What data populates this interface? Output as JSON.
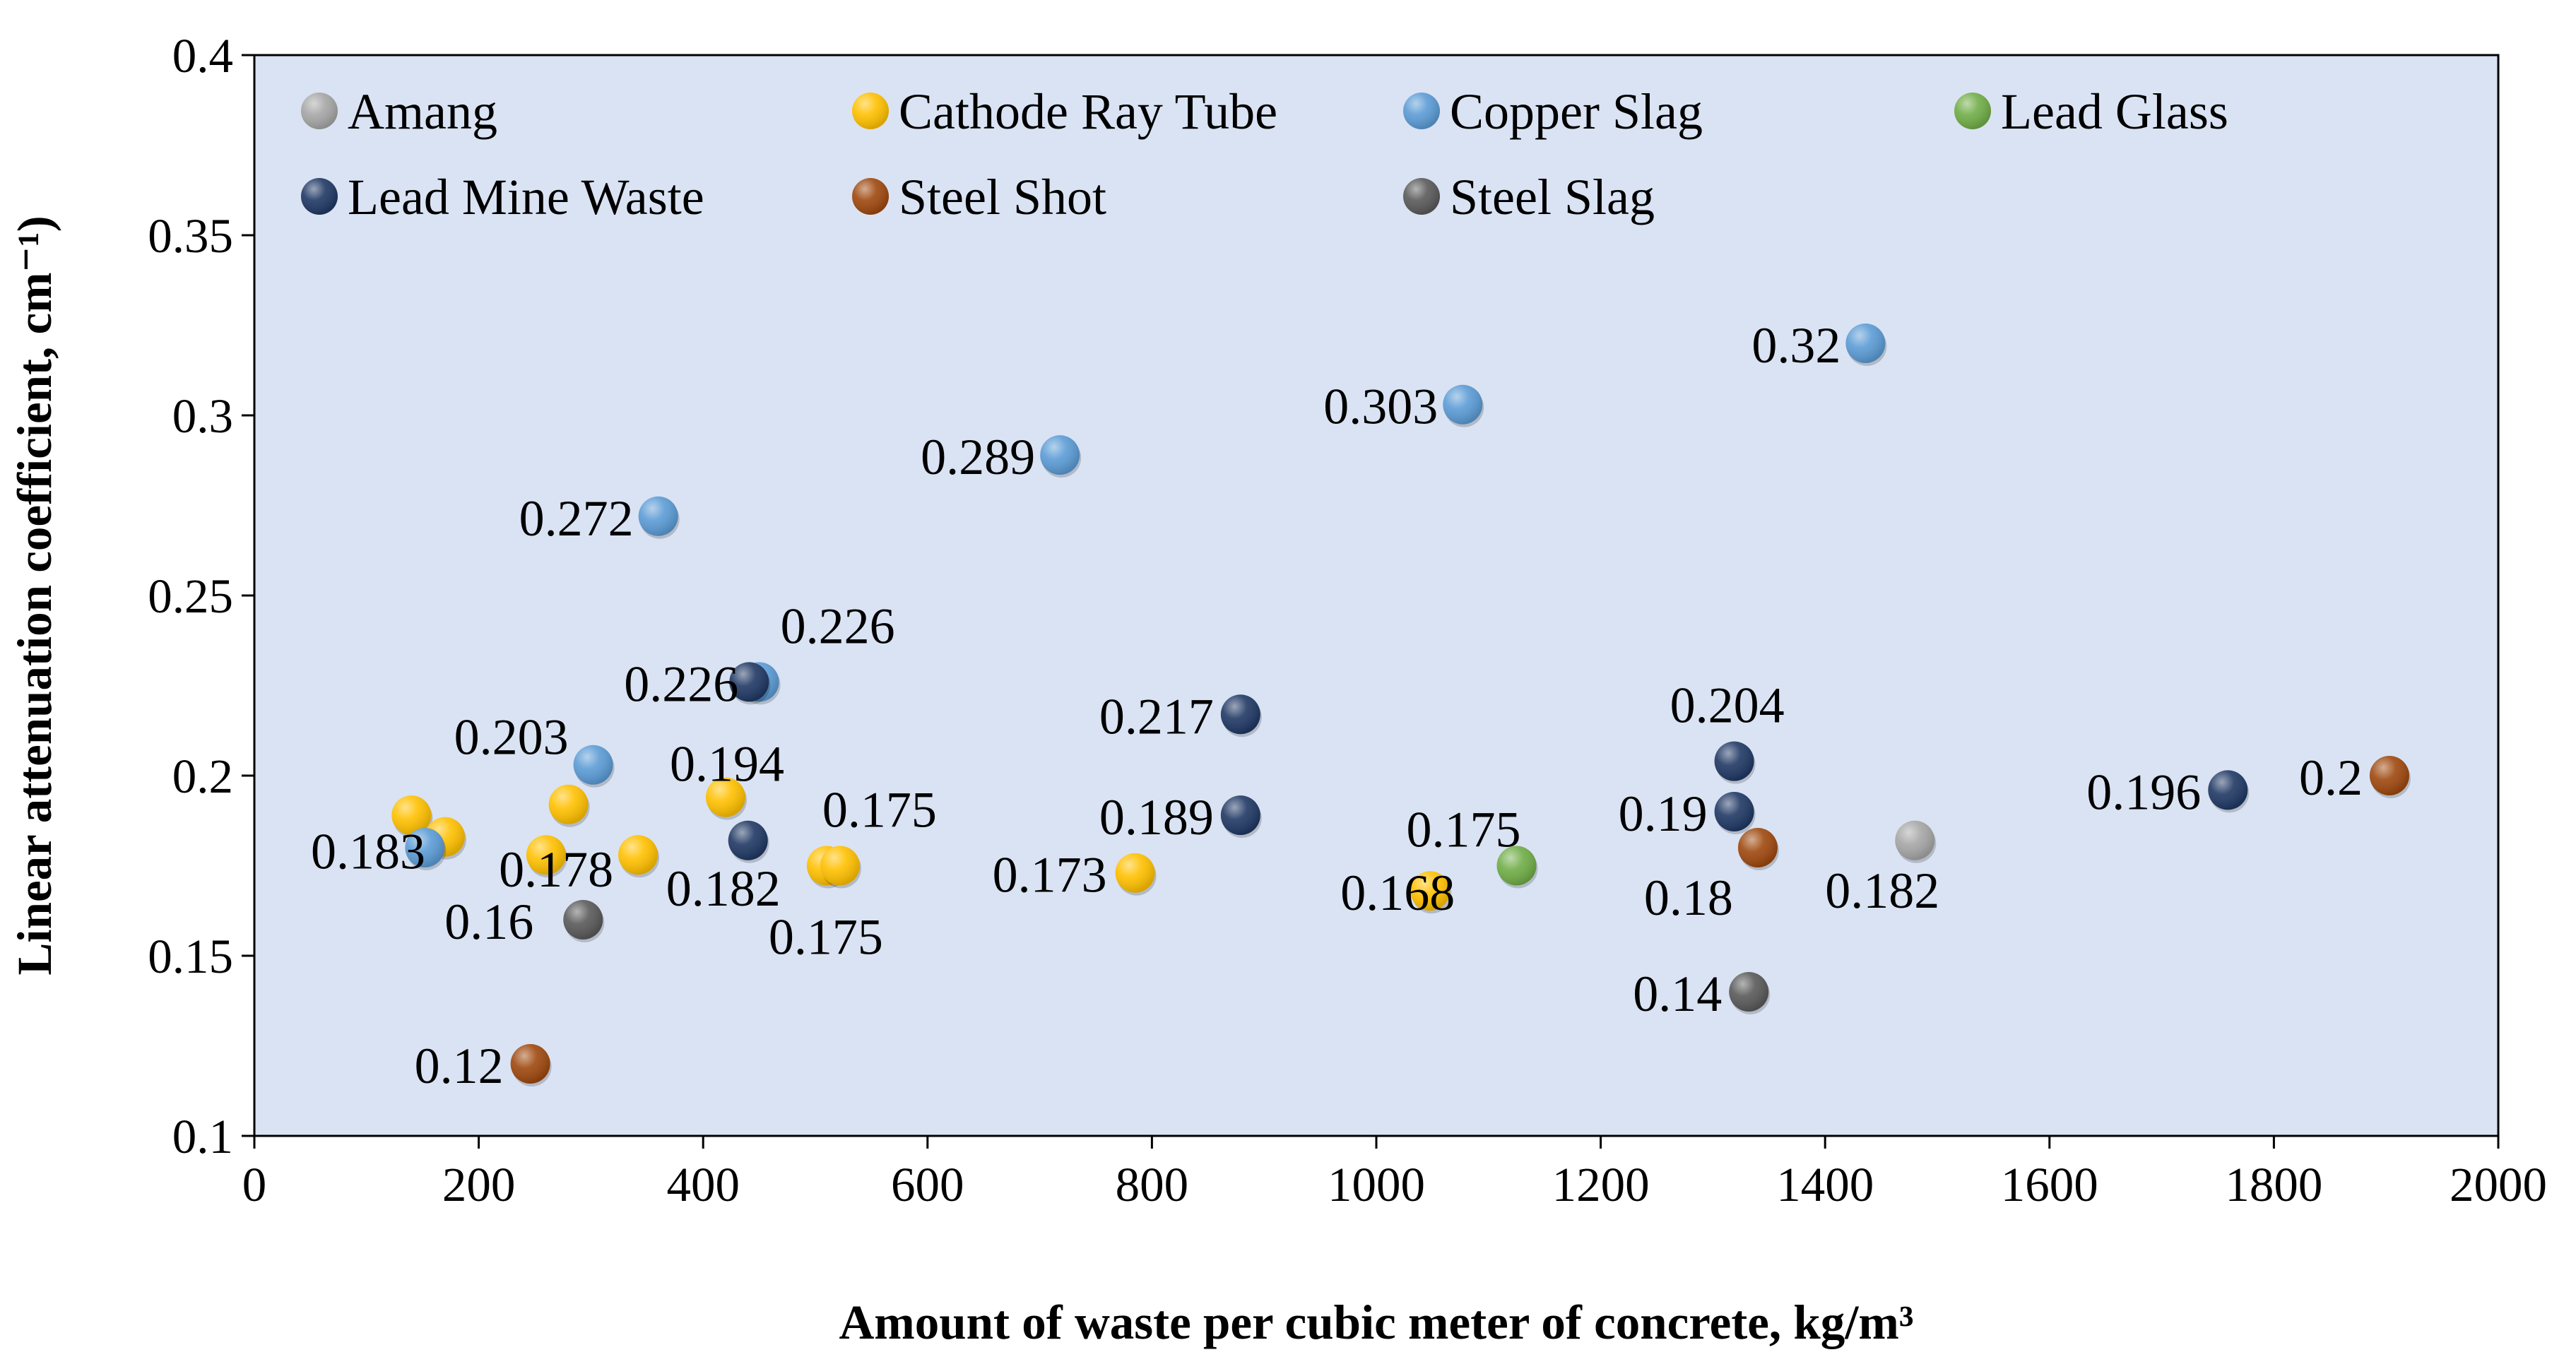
{
  "chart_data": {
    "type": "scatter",
    "xlabel": "Amount of waste per cubic meter of concrete, kg/m³",
    "ylabel": "Linear attenuation coefficient, cm⁻¹)",
    "xlim": [
      0,
      2000
    ],
    "ylim": [
      0.1,
      0.4
    ],
    "x_ticks": [
      "0",
      "200",
      "400",
      "600",
      "800",
      "1000",
      "1200",
      "1400",
      "1600",
      "1800",
      "2000"
    ],
    "y_ticks": [
      "0.1",
      "0.15",
      "0.2",
      "0.25",
      "0.3",
      "0.35",
      "0.4"
    ],
    "grid": false,
    "legend_position": "top",
    "plot_background": "#DAE3F3",
    "series": [
      {
        "name": "Amang",
        "color": "#A6A6A6",
        "points": [
          {
            "x": 1480,
            "y": 0.182,
            "label": "0.182"
          }
        ]
      },
      {
        "name": "Cathode Ray Tube",
        "color": "#FFC000",
        "points": [
          {
            "x": 140,
            "y": 0.189,
            "label": ""
          },
          {
            "x": 170,
            "y": 0.183,
            "label": "0.183"
          },
          {
            "x": 260,
            "y": 0.178,
            "label": ""
          },
          {
            "x": 280,
            "y": 0.192,
            "label": ""
          },
          {
            "x": 342,
            "y": 0.178,
            "label": "0.178"
          },
          {
            "x": 420,
            "y": 0.194,
            "label": "0.194"
          },
          {
            "x": 510,
            "y": 0.175,
            "label": "0.175"
          },
          {
            "x": 522,
            "y": 0.175,
            "label": "0.175"
          },
          {
            "x": 785,
            "y": 0.173,
            "label": "0.173"
          },
          {
            "x": 1048,
            "y": 0.168,
            "label": "0.168"
          }
        ]
      },
      {
        "name": "Copper Slag",
        "color": "#5B9BD5",
        "points": [
          {
            "x": 152,
            "y": 0.18,
            "label": ""
          },
          {
            "x": 302,
            "y": 0.203,
            "label": "0.203"
          },
          {
            "x": 360,
            "y": 0.272,
            "label": "0.272"
          },
          {
            "x": 450,
            "y": 0.226,
            "label": "0.226"
          },
          {
            "x": 718,
            "y": 0.289,
            "label": "0.289"
          },
          {
            "x": 1077,
            "y": 0.303,
            "label": "0.303"
          },
          {
            "x": 1436,
            "y": 0.32,
            "label": "0.32"
          }
        ]
      },
      {
        "name": "Lead Glass",
        "color": "#70AD47",
        "points": [
          {
            "x": 1125,
            "y": 0.175,
            "label": "0.175"
          }
        ]
      },
      {
        "name": "Lead Mine Waste",
        "color": "#203864",
        "points": [
          {
            "x": 440,
            "y": 0.182,
            "label": "0.182"
          },
          {
            "x": 441,
            "y": 0.226,
            "label": "0.226"
          },
          {
            "x": 879,
            "y": 0.217,
            "label": "0.217"
          },
          {
            "x": 879,
            "y": 0.189,
            "label": "0.189"
          },
          {
            "x": 1319,
            "y": 0.204,
            "label": "0.204"
          },
          {
            "x": 1319,
            "y": 0.19,
            "label": "0.19"
          },
          {
            "x": 1759,
            "y": 0.196,
            "label": "0.196"
          }
        ]
      },
      {
        "name": "Steel Shot",
        "color": "#9E480E",
        "points": [
          {
            "x": 246,
            "y": 0.12,
            "label": "0.12"
          },
          {
            "x": 1340,
            "y": 0.18,
            "label": "0.18"
          },
          {
            "x": 1903,
            "y": 0.2,
            "label": "0.2"
          }
        ]
      },
      {
        "name": "Steel Slag",
        "color": "#595959",
        "points": [
          {
            "x": 293,
            "y": 0.16,
            "label": "0.16"
          },
          {
            "x": 1332,
            "y": 0.14,
            "label": "0.14"
          }
        ]
      }
    ]
  }
}
